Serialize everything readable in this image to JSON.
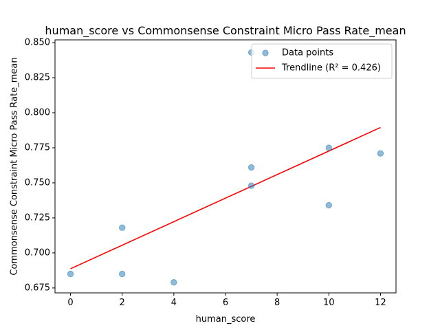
{
  "chart_data": {
    "type": "scatter",
    "title": "human_score vs Commonsense Constraint Micro Pass Rate_mean",
    "xlabel": "human_score",
    "ylabel": "Commonsense Constraint Micro Pass Rate_mean",
    "xlim": [
      -0.6,
      12.6
    ],
    "ylim": [
      0.6715,
      0.852
    ],
    "xticks": [
      0,
      2,
      4,
      6,
      8,
      10,
      12
    ],
    "yticks": [
      0.675,
      0.7,
      0.725,
      0.75,
      0.775,
      0.8,
      0.825,
      0.85
    ],
    "grid": false,
    "legend_position": "top-right",
    "series": [
      {
        "name": "Data points",
        "kind": "scatter",
        "color": "#1f77b4",
        "x": [
          0,
          2,
          2,
          4,
          7,
          7,
          7,
          10,
          10,
          12
        ],
        "y": [
          0.685,
          0.718,
          0.685,
          0.679,
          0.843,
          0.761,
          0.748,
          0.775,
          0.734,
          0.771
        ]
      },
      {
        "name": "Trendline (R² = 0.426)",
        "kind": "line",
        "color": "#ff0000",
        "x": [
          0,
          12
        ],
        "y": [
          0.6887,
          0.7895
        ]
      }
    ]
  }
}
